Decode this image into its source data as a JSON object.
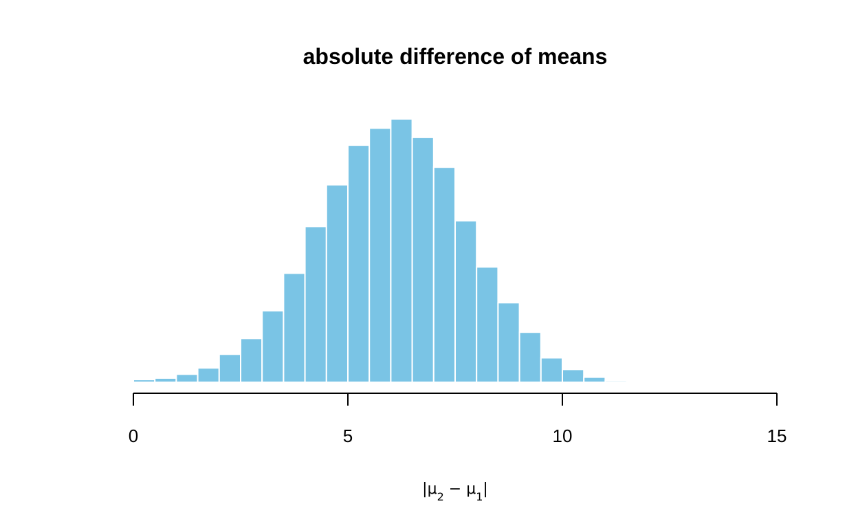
{
  "chart_data": {
    "type": "bar",
    "title": "absolute difference of means",
    "xlabel": "|μ2 − μ1|",
    "ylabel": "",
    "xlim": [
      0,
      15
    ],
    "xticks": [
      0,
      5,
      10,
      15
    ],
    "bin_width": 0.5,
    "bins": [
      {
        "x0": 0.0,
        "x1": 0.5,
        "count": 9
      },
      {
        "x0": 0.5,
        "x1": 1.0,
        "count": 14
      },
      {
        "x0": 1.0,
        "x1": 1.5,
        "count": 27
      },
      {
        "x0": 1.5,
        "x1": 2.0,
        "count": 48
      },
      {
        "x0": 2.0,
        "x1": 2.5,
        "count": 94
      },
      {
        "x0": 2.5,
        "x1": 3.0,
        "count": 147
      },
      {
        "x0": 3.0,
        "x1": 3.5,
        "count": 240
      },
      {
        "x0": 3.5,
        "x1": 4.0,
        "count": 366
      },
      {
        "x0": 4.0,
        "x1": 4.5,
        "count": 523
      },
      {
        "x0": 4.5,
        "x1": 5.0,
        "count": 663
      },
      {
        "x0": 5.0,
        "x1": 5.5,
        "count": 796
      },
      {
        "x0": 5.5,
        "x1": 6.0,
        "count": 853
      },
      {
        "x0": 6.0,
        "x1": 6.5,
        "count": 884
      },
      {
        "x0": 6.5,
        "x1": 7.0,
        "count": 822
      },
      {
        "x0": 7.0,
        "x1": 7.5,
        "count": 722
      },
      {
        "x0": 7.5,
        "x1": 8.0,
        "count": 542
      },
      {
        "x0": 8.0,
        "x1": 8.5,
        "count": 387
      },
      {
        "x0": 8.5,
        "x1": 9.0,
        "count": 267
      },
      {
        "x0": 9.0,
        "x1": 9.5,
        "count": 168
      },
      {
        "x0": 9.5,
        "x1": 10.0,
        "count": 82
      },
      {
        "x0": 10.0,
        "x1": 10.5,
        "count": 43
      },
      {
        "x0": 10.5,
        "x1": 11.0,
        "count": 17
      },
      {
        "x0": 11.0,
        "x1": 11.5,
        "count": 5
      },
      {
        "x0": 11.5,
        "x1": 12.0,
        "count": 1
      }
    ],
    "bar_color": "#7AC4E5",
    "grid": false,
    "legend": "none"
  }
}
